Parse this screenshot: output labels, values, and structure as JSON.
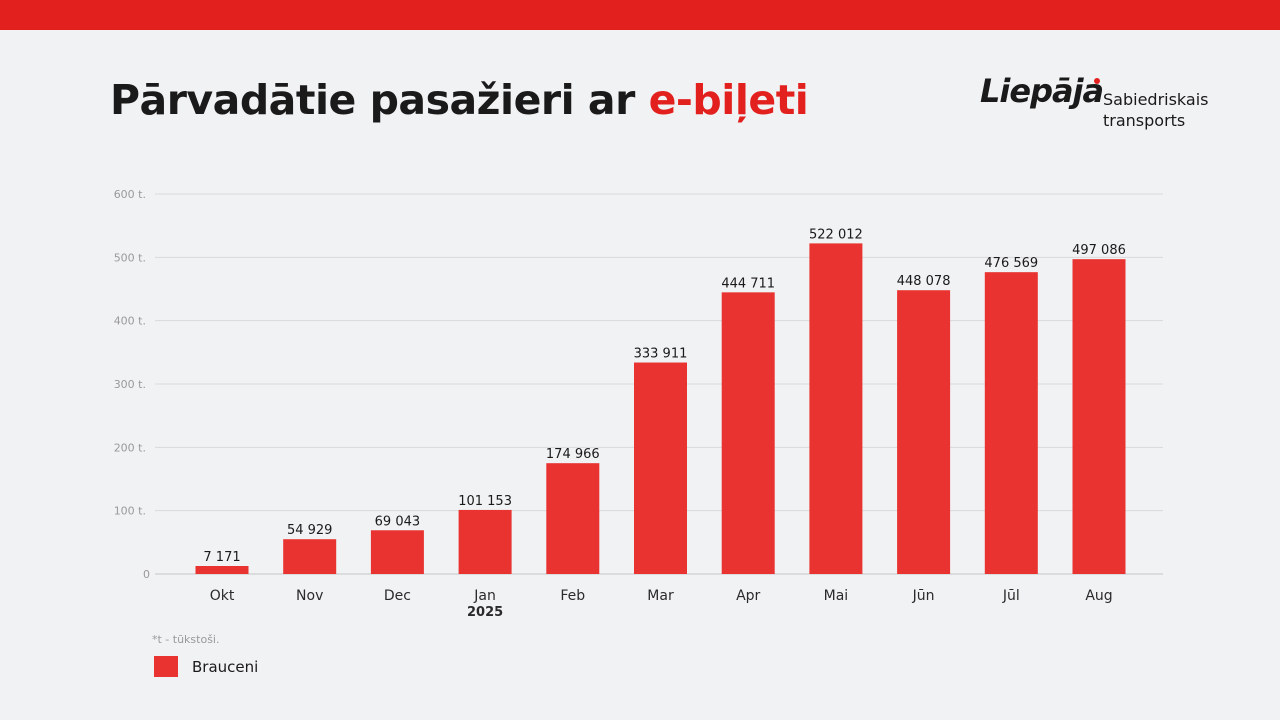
{
  "header": {
    "title_main": "Pārvadātie pasažieri ar ",
    "title_accent": "e-biļeti"
  },
  "logo": {
    "brand": "Liepāja",
    "line1": "Sabiedriskais",
    "line2": "transports"
  },
  "colors": {
    "accent": "#e2201e",
    "bar": "#e93330"
  },
  "chart_data": {
    "type": "bar",
    "categories": [
      "Okt",
      "Nov",
      "Dec",
      "Jan",
      "Feb",
      "Mar",
      "Apr",
      "Mai",
      "Jūn",
      "Jūl",
      "Aug"
    ],
    "category_sublabels": {
      "Jan": "2025"
    },
    "values": [
      7171,
      54929,
      69043,
      101153,
      174966,
      333911,
      444711,
      522012,
      448078,
      476569,
      497086
    ],
    "data_labels": [
      "7 171",
      "54 929",
      "69 043",
      "101 153",
      "174 966",
      "333 911",
      "444 711",
      "522 012",
      "448 078",
      "476 569",
      "497 086"
    ],
    "ylim": [
      0,
      600000
    ],
    "yticks": [
      0,
      100000,
      200000,
      300000,
      400000,
      500000,
      600000
    ],
    "ytick_labels": [
      "0",
      "100 t.",
      "200 t.",
      "300 t.",
      "400 t.",
      "500 t.",
      "600 t."
    ],
    "grid": true,
    "legend": {
      "position": "bottom-left",
      "entries": [
        "Brauceni"
      ]
    },
    "footnote": "*t - tūkstoši."
  }
}
